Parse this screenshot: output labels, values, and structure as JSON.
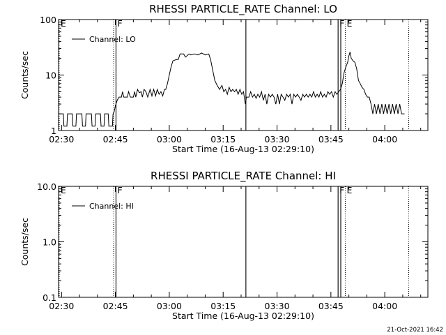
{
  "footer": {
    "timestamp": "21-Oct-2021 16:42"
  },
  "chart_data": [
    {
      "type": "line",
      "title": "RHESSI PARTICLE_RATE Channel: LO",
      "xlabel": "Start Time (16-Aug-13 02:29:10)",
      "ylabel": "Counts/sec",
      "yscale": "log",
      "ylim": [
        1,
        100
      ],
      "xlim": [
        "02:29:10",
        "04:12:00"
      ],
      "xticks": [
        "02:30",
        "02:45",
        "03:00",
        "03:15",
        "03:30",
        "03:45",
        "04:00"
      ],
      "yticks": [
        "1",
        "10",
        "100"
      ],
      "legend": {
        "label": "Channel: LO",
        "placement": "top-left"
      },
      "markers": [
        {
          "time": "02:29:10",
          "style": "dotted",
          "label": "E"
        },
        {
          "time": "02:44:30",
          "style": "dotted",
          "label": ""
        },
        {
          "time": "02:45:10",
          "style": "solid",
          "label": "F"
        },
        {
          "time": "03:21:20",
          "style": "solid",
          "label": ""
        },
        {
          "time": "03:47:00",
          "style": "solid",
          "label": "F"
        },
        {
          "time": "03:47:45",
          "style": "solid",
          "label": ""
        },
        {
          "time": "03:49:00",
          "style": "dotted",
          "label": "E"
        },
        {
          "time": "04:06:40",
          "style": "dotted",
          "label": ""
        }
      ],
      "series": [
        {
          "name": "Channel: LO",
          "points": [
            [
              "02:29:10",
              2
            ],
            [
              "02:30:30",
              2
            ],
            [
              "02:30:40",
              1.2
            ],
            [
              "02:31:30",
              1.2
            ],
            [
              "02:31:40",
              2
            ],
            [
              "02:33:00",
              2
            ],
            [
              "02:33:10",
              1.2
            ],
            [
              "02:34:00",
              1.2
            ],
            [
              "02:34:10",
              2
            ],
            [
              "02:35:40",
              2
            ],
            [
              "02:35:50",
              1.2
            ],
            [
              "02:36:40",
              1.2
            ],
            [
              "02:36:50",
              2
            ],
            [
              "02:38:20",
              2
            ],
            [
              "02:38:30",
              1.2
            ],
            [
              "02:39:20",
              1.2
            ],
            [
              "02:39:30",
              2
            ],
            [
              "02:40:50",
              2
            ],
            [
              "02:41:00",
              1.2
            ],
            [
              "02:41:50",
              1.2
            ],
            [
              "02:42:00",
              2
            ],
            [
              "02:43:00",
              2
            ],
            [
              "02:43:10",
              1.2
            ],
            [
              "02:44:10",
              1.2
            ],
            [
              "02:44:20",
              2
            ],
            [
              "02:44:40",
              2.2
            ],
            [
              "02:45:00",
              2.8
            ],
            [
              "02:45:30",
              3.5
            ],
            [
              "02:46:00",
              4
            ],
            [
              "02:46:40",
              4
            ],
            [
              "02:47:00",
              5
            ],
            [
              "02:47:20",
              4
            ],
            [
              "02:48:20",
              4
            ],
            [
              "02:48:40",
              5
            ],
            [
              "02:49:10",
              4
            ],
            [
              "02:50:00",
              4
            ],
            [
              "02:50:20",
              5
            ],
            [
              "02:50:40",
              4
            ],
            [
              "02:51:10",
              5.5
            ],
            [
              "02:51:40",
              4.8
            ],
            [
              "02:52:10",
              5
            ],
            [
              "02:52:30",
              4
            ],
            [
              "02:53:00",
              5.5
            ],
            [
              "02:53:30",
              5
            ],
            [
              "02:54:00",
              4
            ],
            [
              "02:54:40",
              5.5
            ],
            [
              "02:55:10",
              4.2
            ],
            [
              "02:55:40",
              5.5
            ],
            [
              "02:56:10",
              4.2
            ],
            [
              "02:56:40",
              5.5
            ],
            [
              "02:57:10",
              4.5
            ],
            [
              "02:57:40",
              5
            ],
            [
              "02:58:10",
              4.2
            ],
            [
              "02:58:40",
              5.5
            ],
            [
              "02:59:00",
              5.5
            ],
            [
              "02:59:30",
              7
            ],
            [
              "03:00:00",
              10
            ],
            [
              "03:00:30",
              14
            ],
            [
              "03:01:00",
              18
            ],
            [
              "03:02:00",
              19
            ],
            [
              "03:02:30",
              19
            ],
            [
              "03:03:00",
              24
            ],
            [
              "03:04:00",
              24
            ],
            [
              "03:04:30",
              21
            ],
            [
              "03:05:30",
              24
            ],
            [
              "03:06:00",
              23
            ],
            [
              "03:07:00",
              24
            ],
            [
              "03:08:00",
              23
            ],
            [
              "03:09:00",
              25
            ],
            [
              "03:10:00",
              23
            ],
            [
              "03:11:00",
              24
            ],
            [
              "03:11:30",
              19
            ],
            [
              "03:12:00",
              13
            ],
            [
              "03:12:40",
              8
            ],
            [
              "03:13:20",
              6.5
            ],
            [
              "03:14:00",
              5.5
            ],
            [
              "03:14:40",
              6.5
            ],
            [
              "03:15:10",
              5
            ],
            [
              "03:15:40",
              5.5
            ],
            [
              "03:16:10",
              4.5
            ],
            [
              "03:16:40",
              6
            ],
            [
              "03:17:10",
              5
            ],
            [
              "03:17:40",
              5.5
            ],
            [
              "03:18:10",
              5
            ],
            [
              "03:18:40",
              5.5
            ],
            [
              "03:19:10",
              4.5
            ],
            [
              "03:19:40",
              5.5
            ],
            [
              "03:20:10",
              4.5
            ],
            [
              "03:20:40",
              5
            ],
            [
              "03:21:10",
              3
            ],
            [
              "03:21:30",
              4
            ],
            [
              "03:22:10",
              4
            ],
            [
              "03:22:40",
              5
            ],
            [
              "03:23:10",
              4
            ],
            [
              "03:23:40",
              4.5
            ],
            [
              "03:24:10",
              3.8
            ],
            [
              "03:24:40",
              4.5
            ],
            [
              "03:25:10",
              4
            ],
            [
              "03:25:40",
              5
            ],
            [
              "03:26:10",
              3.5
            ],
            [
              "03:26:40",
              4.5
            ],
            [
              "03:27:10",
              3
            ],
            [
              "03:27:40",
              4.5
            ],
            [
              "03:28:10",
              4
            ],
            [
              "03:28:40",
              4.5
            ],
            [
              "03:29:10",
              4
            ],
            [
              "03:29:40",
              3
            ],
            [
              "03:30:10",
              4.5
            ],
            [
              "03:30:40",
              3
            ],
            [
              "03:31:10",
              4.5
            ],
            [
              "03:31:40",
              4
            ],
            [
              "03:32:10",
              3.5
            ],
            [
              "03:32:40",
              4.5
            ],
            [
              "03:33:10",
              4
            ],
            [
              "03:33:40",
              4.5
            ],
            [
              "03:34:10",
              3
            ],
            [
              "03:34:40",
              4.5
            ],
            [
              "03:35:10",
              4
            ],
            [
              "03:35:40",
              4.5
            ],
            [
              "03:36:10",
              4
            ],
            [
              "03:36:40",
              3.5
            ],
            [
              "03:37:10",
              4.5
            ],
            [
              "03:37:40",
              4
            ],
            [
              "03:38:10",
              4.5
            ],
            [
              "03:38:40",
              4
            ],
            [
              "03:39:10",
              4.5
            ],
            [
              "03:39:40",
              4
            ],
            [
              "03:40:10",
              5
            ],
            [
              "03:40:40",
              4
            ],
            [
              "03:41:10",
              4.5
            ],
            [
              "03:41:40",
              4
            ],
            [
              "03:42:10",
              5
            ],
            [
              "03:42:40",
              4
            ],
            [
              "03:43:10",
              4.5
            ],
            [
              "03:43:40",
              4
            ],
            [
              "03:44:10",
              5
            ],
            [
              "03:44:40",
              4.5
            ],
            [
              "03:45:10",
              5
            ],
            [
              "03:45:40",
              4
            ],
            [
              "03:46:10",
              5
            ],
            [
              "03:46:40",
              4.5
            ],
            [
              "03:47:10",
              5
            ],
            [
              "03:47:40",
              5.5
            ],
            [
              "03:48:10",
              7
            ],
            [
              "03:48:40",
              11
            ],
            [
              "03:49:10",
              14
            ],
            [
              "03:49:40",
              17
            ],
            [
              "03:50:00",
              22
            ],
            [
              "03:50:20",
              26
            ],
            [
              "03:50:40",
              20
            ],
            [
              "03:51:10",
              18
            ],
            [
              "03:51:40",
              17
            ],
            [
              "03:52:10",
              13
            ],
            [
              "03:52:40",
              8
            ],
            [
              "03:53:10",
              7
            ],
            [
              "03:53:40",
              6
            ],
            [
              "03:54:10",
              5.5
            ],
            [
              "03:54:40",
              4.5
            ],
            [
              "03:55:10",
              4
            ],
            [
              "03:55:40",
              4
            ],
            [
              "03:56:10",
              3
            ],
            [
              "03:56:40",
              2
            ],
            [
              "03:57:10",
              3
            ],
            [
              "03:57:40",
              2
            ],
            [
              "03:58:10",
              3
            ],
            [
              "03:58:40",
              2
            ],
            [
              "03:59:10",
              3
            ],
            [
              "03:59:40",
              2
            ],
            [
              "04:00:10",
              3
            ],
            [
              "04:00:40",
              2
            ],
            [
              "04:01:10",
              3
            ],
            [
              "04:01:40",
              2
            ],
            [
              "04:02:10",
              3
            ],
            [
              "04:02:40",
              2
            ],
            [
              "04:03:10",
              3
            ],
            [
              "04:03:40",
              2
            ],
            [
              "04:04:10",
              3
            ],
            [
              "04:04:40",
              2
            ],
            [
              "04:05:30",
              2
            ]
          ]
        }
      ]
    },
    {
      "type": "line",
      "title": "RHESSI PARTICLE_RATE Channel: HI",
      "xlabel": "Start Time (16-Aug-13 02:29:10)",
      "ylabel": "Counts/sec",
      "yscale": "log",
      "ylim": [
        0.1,
        10
      ],
      "xlim": [
        "02:29:10",
        "04:12:00"
      ],
      "xticks": [
        "02:30",
        "02:45",
        "03:00",
        "03:15",
        "03:30",
        "03:45",
        "04:00"
      ],
      "yticks": [
        "0.1",
        "1.0",
        "10.0"
      ],
      "legend": {
        "label": "Channel: HI",
        "placement": "top-left"
      },
      "markers": [
        {
          "time": "02:29:10",
          "style": "dotted",
          "label": "E"
        },
        {
          "time": "02:44:30",
          "style": "dotted",
          "label": ""
        },
        {
          "time": "02:45:10",
          "style": "solid",
          "label": "F"
        },
        {
          "time": "03:21:20",
          "style": "solid",
          "label": ""
        },
        {
          "time": "03:47:00",
          "style": "solid",
          "label": "F"
        },
        {
          "time": "03:47:45",
          "style": "solid",
          "label": ""
        },
        {
          "time": "03:49:00",
          "style": "dotted",
          "label": "E"
        },
        {
          "time": "04:06:40",
          "style": "dotted",
          "label": ""
        }
      ],
      "series": [
        {
          "name": "Channel: HI",
          "points": []
        }
      ]
    }
  ]
}
